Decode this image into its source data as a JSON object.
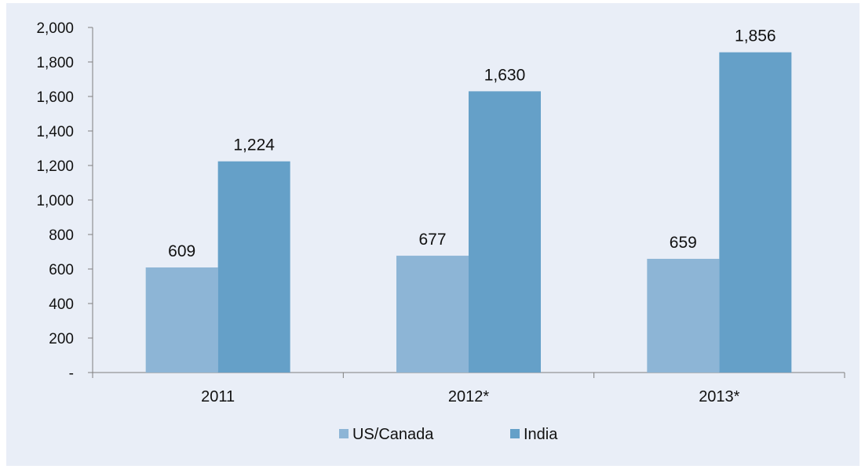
{
  "chart_data": {
    "type": "bar",
    "categories": [
      "2011",
      "2012*",
      "2013*"
    ],
    "series": [
      {
        "name": "US/Canada",
        "values": [
          609,
          677,
          659
        ],
        "labels": [
          "609",
          "677",
          "659"
        ],
        "color": "#8db5d6"
      },
      {
        "name": "India",
        "values": [
          1224,
          1630,
          1856
        ],
        "labels": [
          "1,224",
          "1,630",
          "1,856"
        ],
        "color": "#65a0c8"
      }
    ],
    "ylim": [
      0,
      2000
    ],
    "yticks": [
      {
        "value": 0,
        "label": "-"
      },
      {
        "value": 200,
        "label": "200"
      },
      {
        "value": 400,
        "label": "400"
      },
      {
        "value": 600,
        "label": "600"
      },
      {
        "value": 800,
        "label": "800"
      },
      {
        "value": 1000,
        "label": "1,000"
      },
      {
        "value": 1200,
        "label": "1,200"
      },
      {
        "value": 1400,
        "label": "1,400"
      },
      {
        "value": 1600,
        "label": "1,600"
      },
      {
        "value": 1800,
        "label": "1,800"
      },
      {
        "value": 2000,
        "label": "2,000"
      }
    ],
    "grid": false,
    "legend_position": "bottom",
    "background": "#e9eef7"
  }
}
